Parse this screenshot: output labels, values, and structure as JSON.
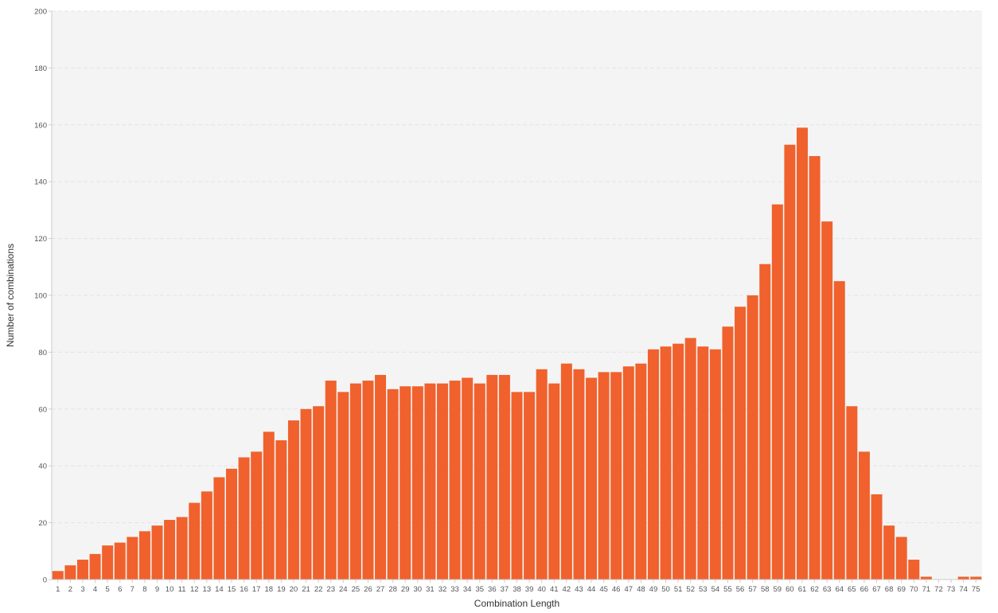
{
  "chart_data": {
    "type": "bar",
    "title": "",
    "xlabel": "Combination Length",
    "ylabel": "Number of combinations",
    "ylim": [
      0,
      200
    ],
    "yticks": [
      0,
      20,
      40,
      60,
      80,
      100,
      120,
      140,
      160,
      180,
      200
    ],
    "grid": true,
    "legend": "none",
    "categories": [
      "1",
      "2",
      "3",
      "4",
      "5",
      "6",
      "7",
      "8",
      "9",
      "10",
      "11",
      "12",
      "13",
      "14",
      "15",
      "16",
      "17",
      "18",
      "19",
      "20",
      "21",
      "22",
      "23",
      "24",
      "25",
      "26",
      "27",
      "28",
      "29",
      "30",
      "31",
      "32",
      "33",
      "34",
      "35",
      "36",
      "37",
      "38",
      "39",
      "40",
      "41",
      "42",
      "43",
      "44",
      "45",
      "46",
      "47",
      "48",
      "49",
      "50",
      "51",
      "52",
      "53",
      "54",
      "55",
      "56",
      "57",
      "58",
      "59",
      "60",
      "61",
      "62",
      "63",
      "64",
      "65",
      "66",
      "67",
      "68",
      "69",
      "70",
      "71",
      "72",
      "73",
      "74",
      "75"
    ],
    "values": [
      3,
      5,
      7,
      9,
      12,
      13,
      15,
      17,
      19,
      21,
      22,
      27,
      31,
      36,
      39,
      43,
      45,
      52,
      49,
      56,
      60,
      61,
      70,
      66,
      69,
      70,
      72,
      67,
      68,
      68,
      69,
      69,
      70,
      71,
      69,
      72,
      72,
      66,
      66,
      74,
      69,
      76,
      74,
      71,
      73,
      73,
      75,
      76,
      81,
      82,
      83,
      85,
      82,
      81,
      89,
      96,
      100,
      111,
      132,
      153,
      159,
      149,
      126,
      105,
      61,
      45,
      30,
      19,
      15,
      7,
      1,
      0,
      0,
      1,
      1
    ],
    "colors": {
      "bar": "#f0612d",
      "plot_background": "#f4f4f4",
      "gridline": "#e3e3e3",
      "axis": "#cccccc"
    }
  }
}
